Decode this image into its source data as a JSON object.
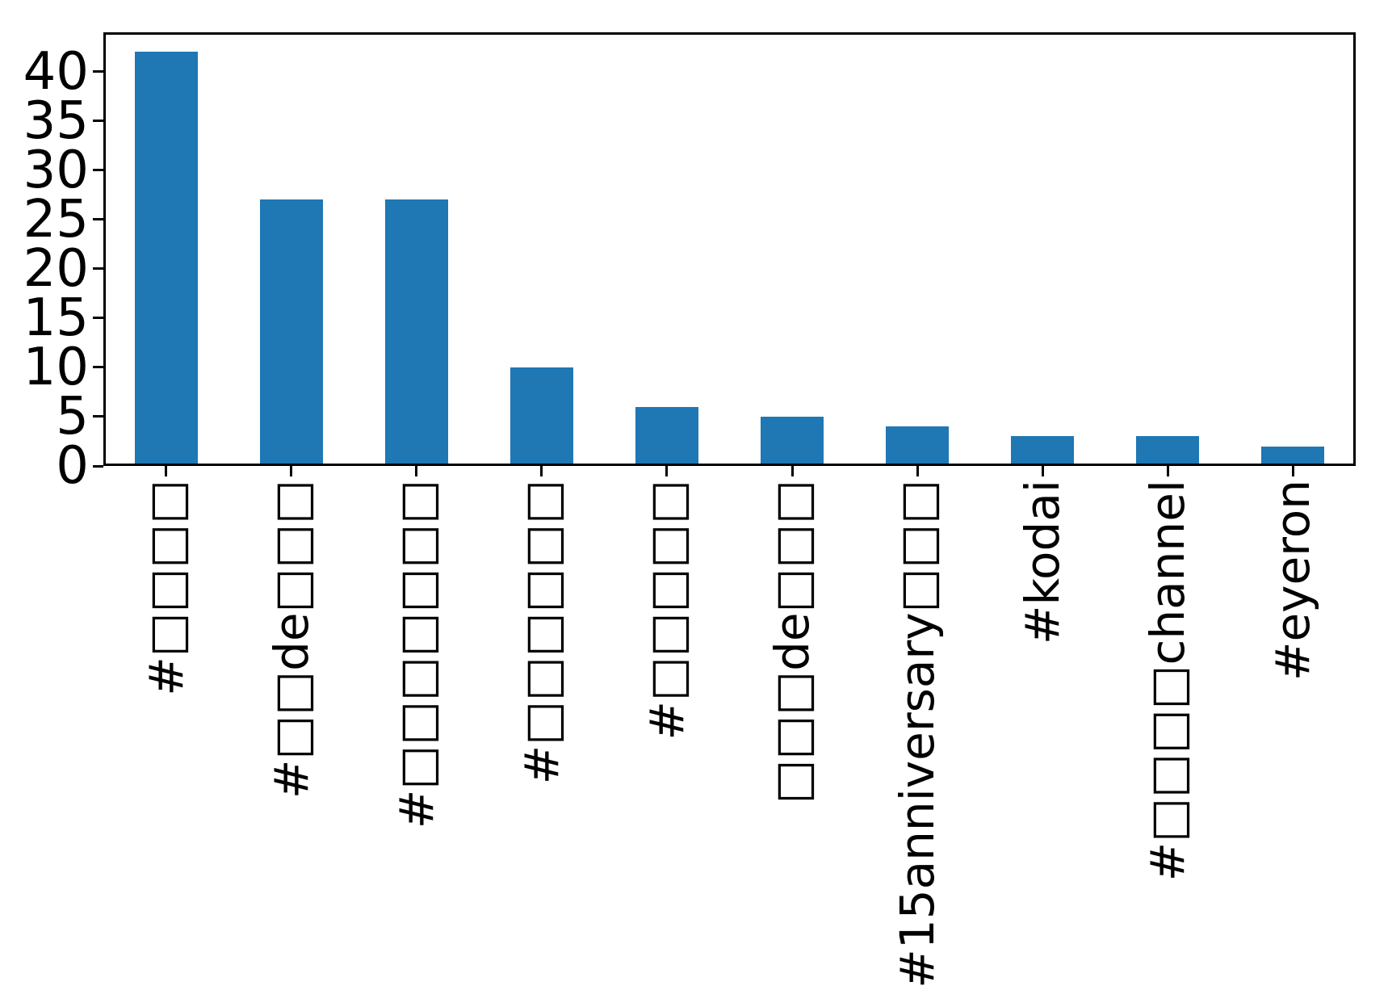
{
  "chart_data": {
    "type": "bar",
    "categories": [
      "#□□□□",
      "#□□de□□□",
      "#□□□□□□□",
      "#□□□□□□",
      "#□□□□□",
      "□□□de□□□",
      "#15anniversary□□□",
      "#kodai",
      "#□□□□channel",
      "#eyeron"
    ],
    "values": [
      42,
      27,
      27,
      10,
      6,
      5,
      4,
      3,
      3,
      2
    ],
    "title": "",
    "xlabel": "",
    "ylabel": "",
    "yticks": [
      0,
      5,
      10,
      15,
      20,
      25,
      30,
      35,
      40
    ],
    "ylim": [
      0,
      44
    ],
    "x_tick_label_rotation": 90,
    "grid": false,
    "legend": null,
    "bar_color": "#1f77b4",
    "axis_color": "#000000",
    "background_color": "#ffffff"
  }
}
